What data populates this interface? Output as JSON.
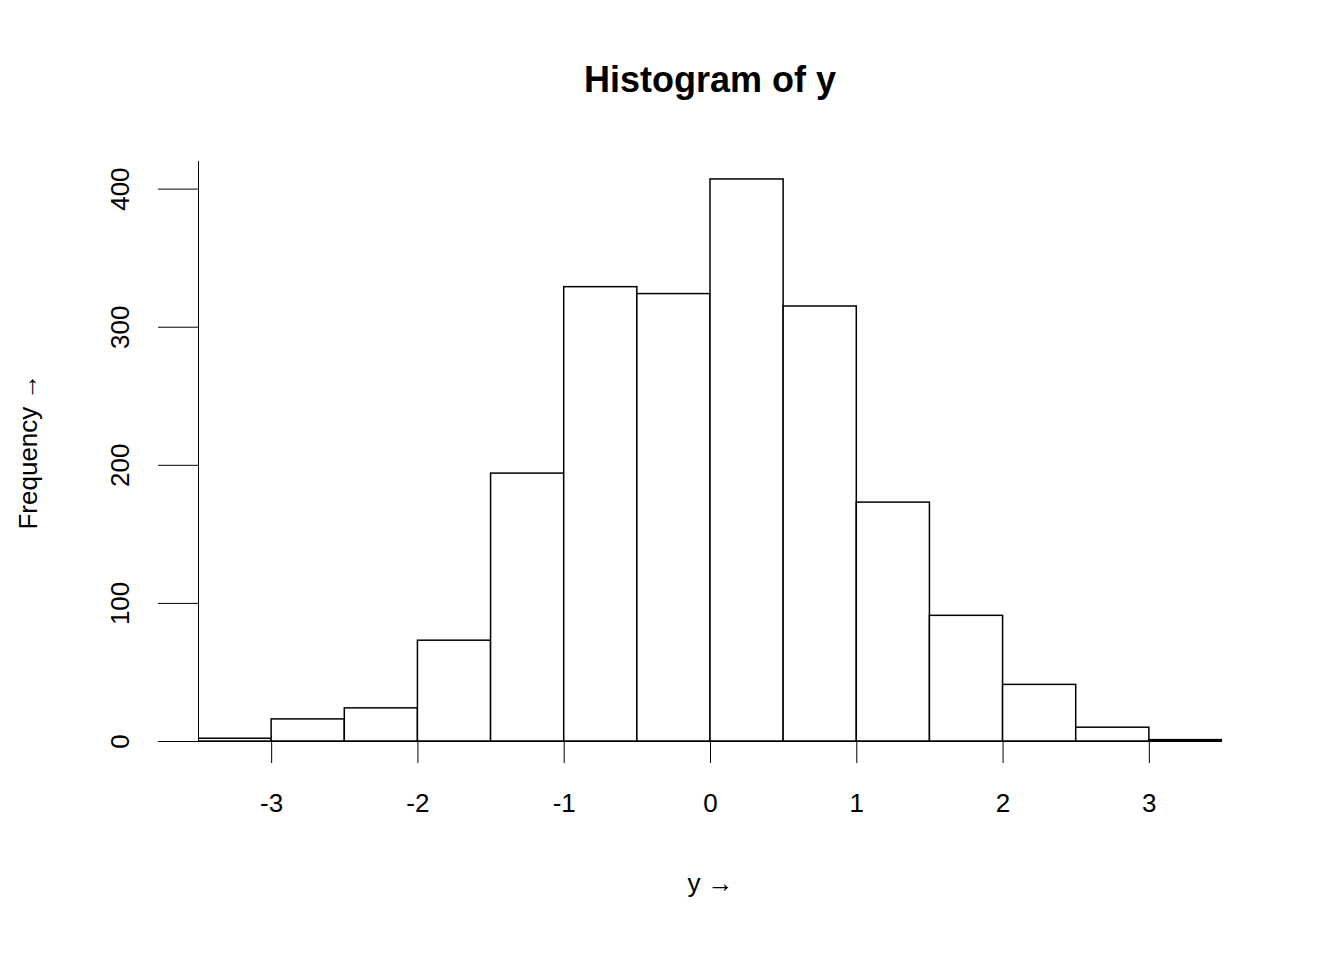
{
  "chart_data": {
    "type": "histogram",
    "title": "Histogram of y",
    "x_label": "y",
    "y_label": "Frequency",
    "bins": [
      -3.5,
      -3,
      -2.5,
      -2,
      -1.5,
      -1,
      -0.5,
      0,
      0.5,
      1,
      1.5,
      2,
      2.5,
      3,
      3.5
    ],
    "values": [
      2,
      16,
      24,
      73,
      194,
      329,
      324,
      407,
      315,
      173,
      91,
      41,
      10,
      1
    ],
    "color": "#ffffff",
    "xlim": [
      -3.5,
      3.5
    ],
    "xticks": [
      -3,
      -2,
      -1,
      0,
      1,
      2,
      3
    ],
    "ylim": [
      0,
      420
    ],
    "yticks": [
      0,
      100,
      200,
      300,
      400
    ],
    "grid": false
  }
}
